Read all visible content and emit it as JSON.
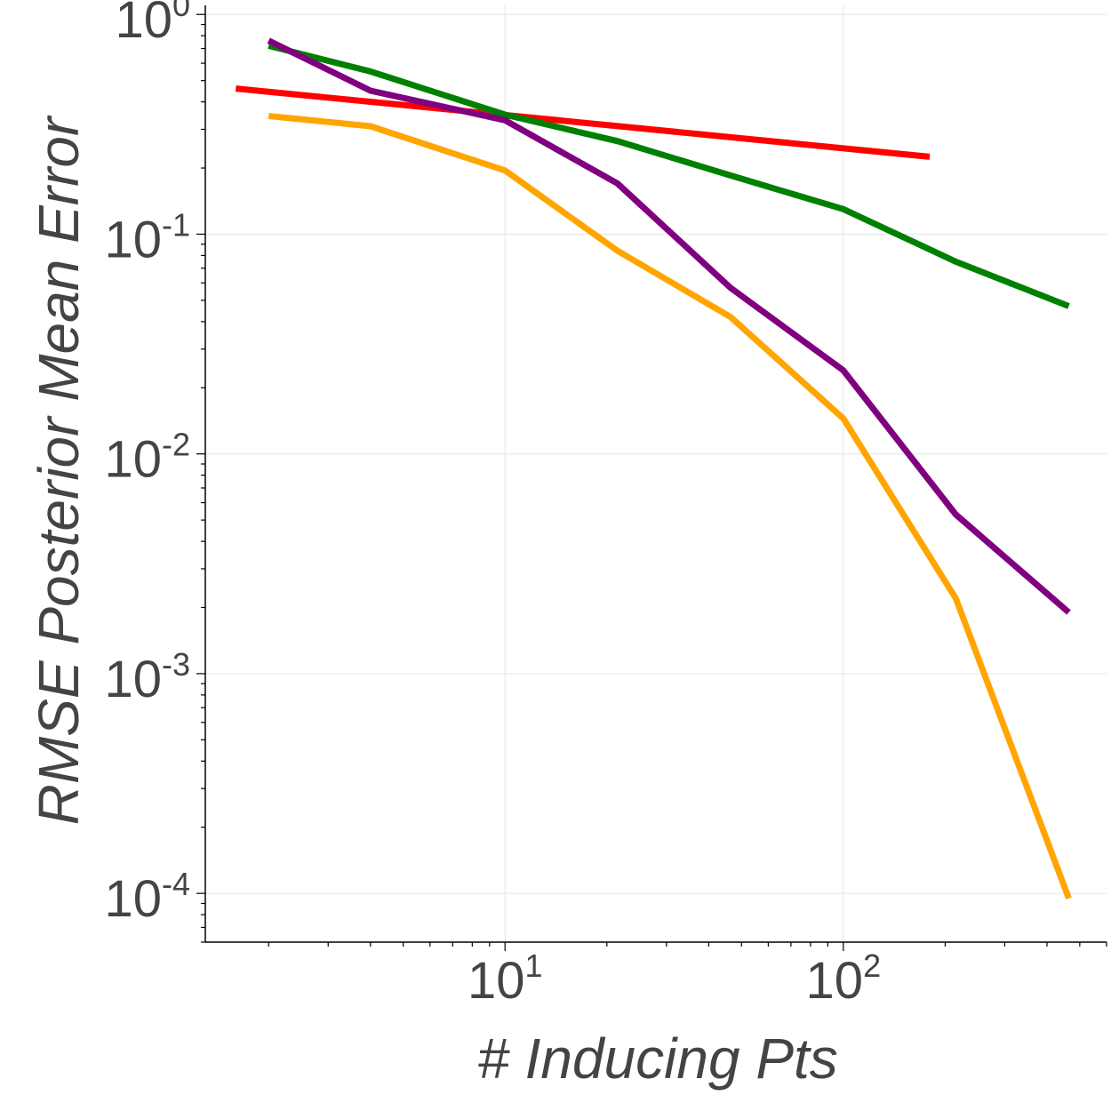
{
  "chart_data": {
    "type": "line",
    "title": "",
    "xlabel": "# Inducing Pts",
    "ylabel": "RMSE Posterior Mean Error",
    "xscale": "log",
    "yscale": "log",
    "xlim": [
      1.3,
      600
    ],
    "ylim": [
      6e-05,
      1.1
    ],
    "grid": true,
    "legend": "none",
    "x_ticks": [
      {
        "value": 10,
        "base": "10",
        "exp": "1"
      },
      {
        "value": 100,
        "base": "10",
        "exp": "2"
      }
    ],
    "y_ticks": [
      {
        "value": 1,
        "base": "10",
        "exp": "0"
      },
      {
        "value": 0.1,
        "base": "10",
        "exp": "-1"
      },
      {
        "value": 0.01,
        "base": "10",
        "exp": "-2"
      },
      {
        "value": 0.001,
        "base": "10",
        "exp": "-3"
      },
      {
        "value": 0.0001,
        "base": "10",
        "exp": "-4"
      }
    ],
    "series": [
      {
        "name": "red",
        "color": "#ff0000",
        "x": [
          1.6,
          180
        ],
        "y": [
          0.46,
          0.225
        ]
      },
      {
        "name": "green",
        "color": "#008000",
        "x": [
          2,
          4,
          10,
          21.5,
          46.4,
          100,
          215,
          464
        ],
        "y": [
          0.72,
          0.55,
          0.35,
          0.265,
          0.185,
          0.13,
          0.075,
          0.047
        ]
      },
      {
        "name": "purple",
        "color": "#800080",
        "x": [
          2,
          4,
          10,
          21.5,
          46.4,
          100,
          215,
          464
        ],
        "y": [
          0.76,
          0.45,
          0.33,
          0.17,
          0.057,
          0.024,
          0.0053,
          0.0019
        ]
      },
      {
        "name": "orange",
        "color": "#ffa500",
        "x": [
          2,
          4,
          10,
          21.5,
          46.4,
          100,
          215,
          464
        ],
        "y": [
          0.345,
          0.31,
          0.195,
          0.084,
          0.042,
          0.0145,
          0.0022,
          9.5e-05
        ]
      }
    ]
  }
}
